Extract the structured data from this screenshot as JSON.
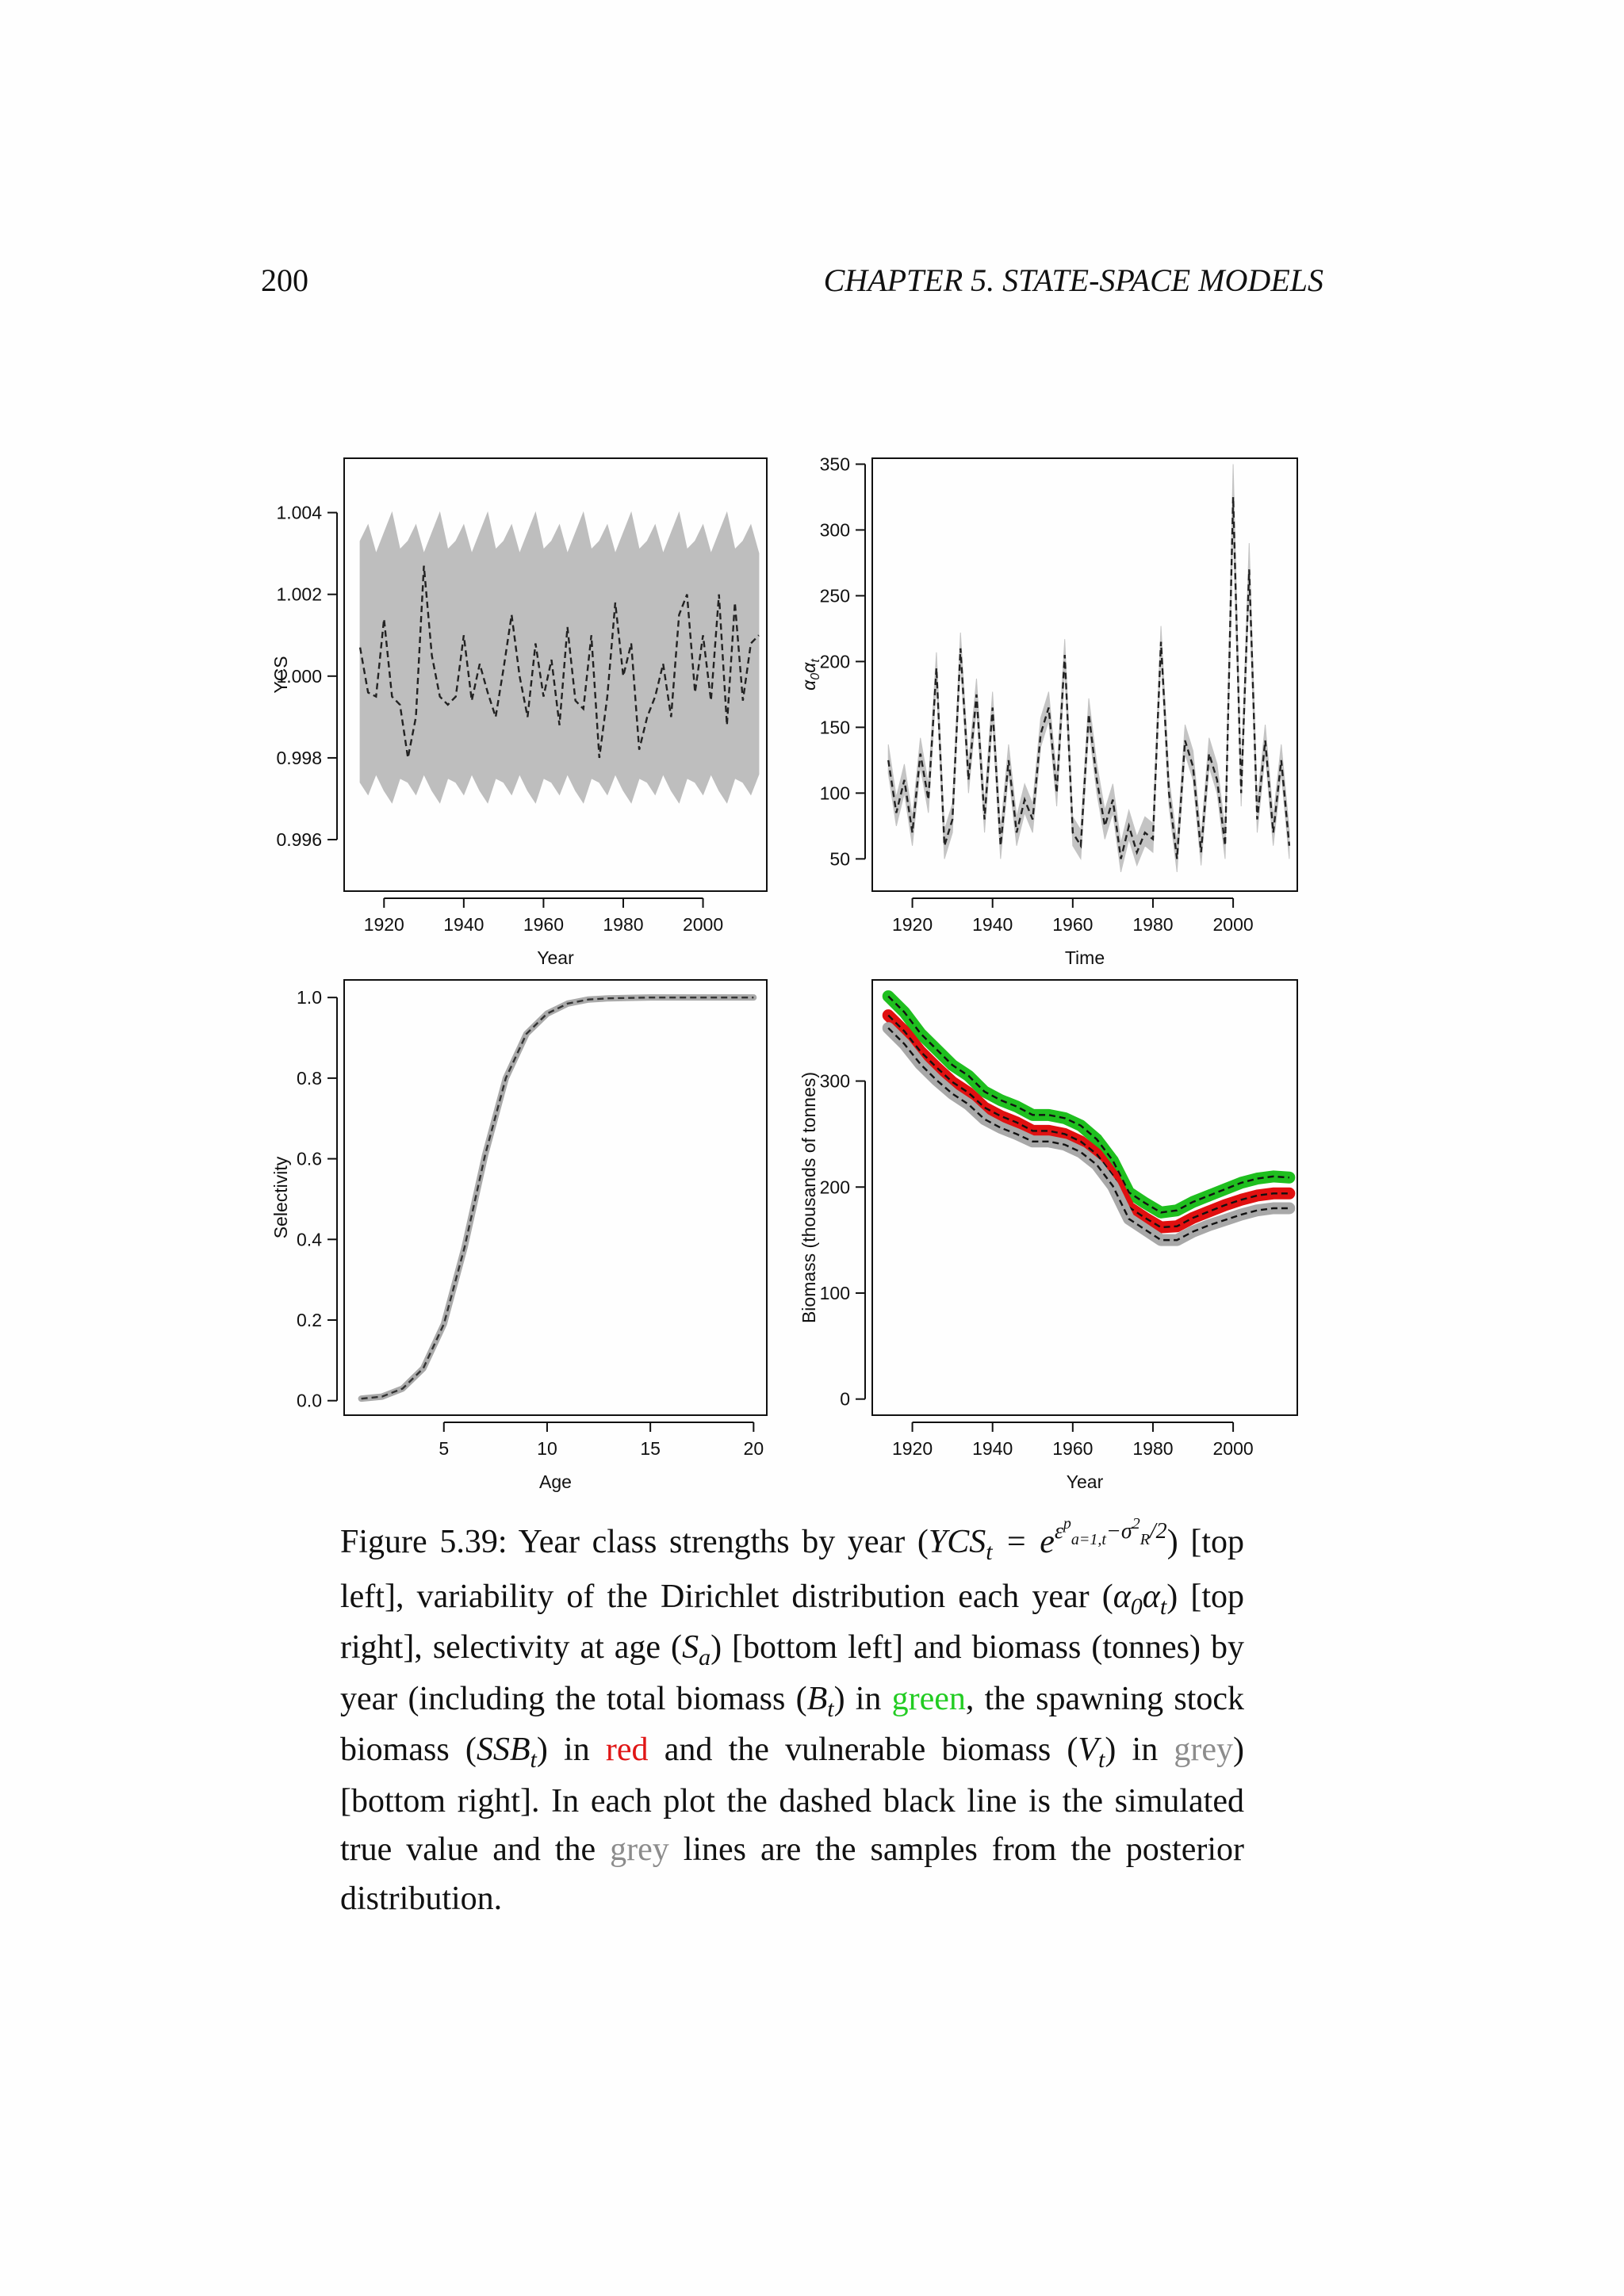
{
  "header": {
    "page_number": "200",
    "chapter": "CHAPTER 5.  STATE-SPACE MODELS"
  },
  "chart_data": [
    {
      "type": "line",
      "xlabel": "Year",
      "ylabel": "YCS",
      "xlim": [
        1910,
        2016
      ],
      "ylim": [
        0.99474,
        1.00533
      ],
      "xticks": [
        1920,
        1940,
        1960,
        1980,
        2000
      ],
      "yticks": [
        0.996,
        0.998,
        {
          "value": 1,
          "label": "1.000"
        },
        1.002,
        1.004
      ],
      "x": [
        1914,
        1916,
        1918,
        1920,
        1922,
        1924,
        1926,
        1928,
        1930,
        1932,
        1934,
        1936,
        1938,
        1940,
        1942,
        1944,
        1946,
        1948,
        1950,
        1952,
        1954,
        1956,
        1958,
        1960,
        1962,
        1964,
        1966,
        1968,
        1970,
        1972,
        1974,
        1976,
        1978,
        1980,
        1982,
        1984,
        1986,
        1988,
        1990,
        1992,
        1994,
        1996,
        1998,
        2000,
        2002,
        2004,
        2006,
        2008,
        2010,
        2012,
        2014
      ],
      "band": {
        "color": "#bebebe",
        "lower": [
          0.9974,
          0.9971,
          0.9976,
          0.9972,
          0.9969,
          0.9975,
          0.9974,
          0.9971,
          0.9976,
          0.9972,
          0.9969,
          0.9975,
          0.9974,
          0.9971,
          0.9976,
          0.9972,
          0.9969,
          0.9975,
          0.9974,
          0.9971,
          0.9976,
          0.9972,
          0.9969,
          0.9975,
          0.9974,
          0.9971,
          0.9976,
          0.9972,
          0.9969,
          0.9975,
          0.9974,
          0.9971,
          0.9976,
          0.9972,
          0.9969,
          0.9975,
          0.9974,
          0.9971,
          0.9976,
          0.9972,
          0.9969,
          0.9975,
          0.9974,
          0.9971,
          0.9976,
          0.9972,
          0.9969,
          0.9975,
          0.9974,
          0.9971,
          0.9976
        ],
        "upper": [
          1.0033,
          1.0037,
          1.003,
          1.0035,
          1.004,
          1.0031,
          1.0033,
          1.0037,
          1.003,
          1.0035,
          1.004,
          1.0031,
          1.0033,
          1.0037,
          1.003,
          1.0035,
          1.004,
          1.0031,
          1.0033,
          1.0037,
          1.003,
          1.0035,
          1.004,
          1.0031,
          1.0033,
          1.0037,
          1.003,
          1.0035,
          1.004,
          1.0031,
          1.0033,
          1.0037,
          1.003,
          1.0035,
          1.004,
          1.0031,
          1.0033,
          1.0037,
          1.003,
          1.0035,
          1.004,
          1.0031,
          1.0033,
          1.0037,
          1.003,
          1.0035,
          1.004,
          1.0031,
          1.0033,
          1.0037,
          1.003
        ]
      },
      "series": [
        {
          "color": "#222222",
          "line_style": "dashed",
          "values": [
            1.0007,
            0.9996,
            0.9995,
            1.0014,
            0.9995,
            0.9993,
            0.998,
            0.999,
            1.0027,
            1.0005,
            0.9995,
            0.9993,
            0.9995,
            1.001,
            0.9994,
            1.0003,
            0.9996,
            0.999,
            1.0002,
            1.0015,
            1.0,
            0.999,
            1.0008,
            0.9995,
            1.0004,
            0.9988,
            1.0012,
            0.9994,
            0.9992,
            1.001,
            0.998,
            0.9995,
            1.0018,
            1.0,
            1.0008,
            0.9982,
            0.999,
            0.9995,
            1.0003,
            0.999,
            1.0015,
            1.002,
            0.9996,
            1.001,
            0.9994,
            1.002,
            0.9988,
            1.0018,
            0.9994,
            1.0008,
            1.001
          ]
        }
      ]
    },
    {
      "type": "line",
      "xlabel": "Time",
      "ylabel": [
        {
          "text": "α",
          "style": "math"
        },
        {
          "text": "0",
          "style": "sub"
        },
        {
          "text": "α",
          "style": "math"
        },
        {
          "text": "t",
          "style": "sub"
        }
      ],
      "xlim": [
        1910,
        2016
      ],
      "ylim": [
        25.5,
        354.5
      ],
      "xticks": [
        1920,
        1940,
        1960,
        1980,
        2000
      ],
      "yticks": [
        50,
        100,
        150,
        200,
        250,
        300,
        350
      ],
      "x": [
        1914,
        1916,
        1918,
        1920,
        1922,
        1924,
        1926,
        1928,
        1930,
        1932,
        1934,
        1936,
        1938,
        1940,
        1942,
        1944,
        1946,
        1948,
        1950,
        1952,
        1954,
        1956,
        1958,
        1960,
        1962,
        1964,
        1966,
        1968,
        1970,
        1972,
        1974,
        1976,
        1978,
        1980,
        1982,
        1984,
        1986,
        1988,
        1990,
        1992,
        1994,
        1996,
        1998,
        2000,
        2002,
        2004,
        2006,
        2008,
        2010,
        2012,
        2014
      ],
      "band": {
        "color": "#c4c4c4",
        "lower": [
          115,
          75,
          100,
          60,
          120,
          85,
          185,
          50,
          70,
          200,
          100,
          165,
          70,
          155,
          50,
          115,
          60,
          85,
          70,
          135,
          155,
          90,
          195,
          60,
          50,
          150,
          100,
          65,
          85,
          40,
          65,
          45,
          60,
          55,
          205,
          90,
          40,
          130,
          110,
          45,
          120,
          100,
          50,
          305,
          90,
          255,
          70,
          130,
          60,
          115,
          50
        ],
        "upper": [
          137,
          97,
          122,
          82,
          142,
          107,
          207,
          72,
          92,
          222,
          122,
          187,
          92,
          177,
          72,
          137,
          82,
          107,
          92,
          157,
          177,
          112,
          217,
          82,
          72,
          172,
          122,
          87,
          107,
          62,
          87,
          67,
          82,
          77,
          227,
          112,
          62,
          152,
          132,
          67,
          142,
          122,
          72,
          350,
          112,
          290,
          92,
          152,
          82,
          137,
          72
        ]
      },
      "series": [
        {
          "color": "#222222",
          "line_style": "dashed",
          "values": [
            125,
            85,
            110,
            70,
            130,
            95,
            195,
            60,
            80,
            210,
            110,
            175,
            80,
            165,
            60,
            125,
            70,
            95,
            80,
            145,
            165,
            100,
            205,
            70,
            60,
            160,
            110,
            75,
            95,
            50,
            75,
            55,
            70,
            65,
            215,
            100,
            50,
            140,
            120,
            55,
            130,
            110,
            60,
            325,
            100,
            270,
            80,
            140,
            70,
            125,
            60
          ]
        }
      ]
    },
    {
      "type": "line",
      "xlabel": "Age",
      "ylabel": "Selectivity",
      "xlim": [
        0.17,
        20.64
      ],
      "ylim": [
        -0.036,
        1.0436
      ],
      "xticks": [
        5,
        10,
        15,
        20
      ],
      "yticks": [
        {
          "value": 0,
          "label": "0.0"
        },
        0.2,
        0.4,
        0.6,
        0.8,
        {
          "value": 1,
          "label": "1.0"
        }
      ],
      "x": [
        1,
        2,
        3,
        4,
        5,
        6,
        7,
        8,
        9,
        10,
        11,
        12,
        13,
        14,
        15,
        16,
        17,
        18,
        19,
        20
      ],
      "series": [
        {
          "color": "#333333",
          "halo_color": "#aaaaaa",
          "line_style": "dashed",
          "values": [
            0.005,
            0.01,
            0.03,
            0.08,
            0.19,
            0.38,
            0.61,
            0.8,
            0.91,
            0.96,
            0.985,
            0.995,
            0.998,
            0.999,
            1,
            1,
            1,
            1,
            1,
            1
          ]
        }
      ]
    },
    {
      "type": "line",
      "xlabel": "Year",
      "ylabel": "Biomass (thousands of tonnes)",
      "xlim": [
        1910,
        2016
      ],
      "ylim": [
        -15.2,
        395.4
      ],
      "xticks": [
        1920,
        1940,
        1960,
        1980,
        2000
      ],
      "yticks": [
        0,
        100,
        200,
        300
      ],
      "x": [
        1914,
        1918,
        1922,
        1926,
        1930,
        1934,
        1938,
        1942,
        1946,
        1950,
        1954,
        1958,
        1962,
        1966,
        1970,
        1974,
        1978,
        1982,
        1986,
        1990,
        1994,
        1998,
        2002,
        2006,
        2010,
        2014
      ],
      "series": [
        {
          "color": "#111111",
          "halo_color": "#1fbf1f",
          "line_style": "dashed",
          "values": [
            380,
            365,
            345,
            330,
            315,
            305,
            290,
            282,
            276,
            268,
            268,
            265,
            258,
            245,
            225,
            195,
            185,
            176,
            178,
            186,
            192,
            198,
            204,
            208,
            210,
            209
          ]
        },
        {
          "color": "#111111",
          "halo_color": "#e01010",
          "line_style": "dashed",
          "values": [
            362,
            347,
            328,
            313,
            299,
            289,
            275,
            267,
            261,
            253,
            253,
            250,
            243,
            231,
            211,
            181,
            171,
            162,
            163,
            171,
            177,
            183,
            188,
            192,
            194,
            194
          ]
        },
        {
          "color": "#111111",
          "halo_color": "#a8a8a8",
          "line_style": "dashed",
          "values": [
            350,
            335,
            316,
            301,
            288,
            278,
            264,
            256,
            250,
            243,
            243,
            240,
            233,
            221,
            201,
            170,
            160,
            150,
            150,
            158,
            164,
            169,
            174,
            178,
            180,
            180
          ]
        }
      ]
    }
  ],
  "caption": [
    {
      "text": "Figure 5.39: Year class strengths by year (",
      "style": "text"
    },
    {
      "text": "YCS",
      "style": "math"
    },
    {
      "text": "t",
      "style": "sub"
    },
    {
      "text": " = e",
      "style": "math"
    },
    {
      "text": "ε",
      "style": "sup"
    },
    {
      "text": "p",
      "style": "sup2"
    },
    {
      "text": "a=1,t",
      "style": "supsub"
    },
    {
      "text": "−σ",
      "style": "sup"
    },
    {
      "text": "2",
      "style": "sup2"
    },
    {
      "text": "R",
      "style": "supsub"
    },
    {
      "text": "/2",
      "style": "sup"
    },
    {
      "text": ") [top left], variability of the Dirichlet distribution each year (",
      "style": "text"
    },
    {
      "text": "α",
      "style": "math"
    },
    {
      "text": "0",
      "style": "sub"
    },
    {
      "text": "α",
      "style": "math"
    },
    {
      "text": "t",
      "style": "sub"
    },
    {
      "text": ") [top right], selectivity at age (",
      "style": "text"
    },
    {
      "text": "S",
      "style": "math"
    },
    {
      "text": "a",
      "style": "sub"
    },
    {
      "text": ") [bottom left] and biomass (tonnes) by year (including the total biomass (",
      "style": "text"
    },
    {
      "text": "B",
      "style": "math"
    },
    {
      "text": "t",
      "style": "sub"
    },
    {
      "text": ") in ",
      "style": "text"
    },
    {
      "text": "green",
      "style": "green"
    },
    {
      "text": ", the spawning stock biomass (",
      "style": "text"
    },
    {
      "text": "SSB",
      "style": "math"
    },
    {
      "text": "t",
      "style": "sub"
    },
    {
      "text": ") in ",
      "style": "text"
    },
    {
      "text": "red",
      "style": "red"
    },
    {
      "text": " and the vulnerable biomass (",
      "style": "text"
    },
    {
      "text": "V",
      "style": "math"
    },
    {
      "text": "t",
      "style": "sub"
    },
    {
      "text": ") in ",
      "style": "text"
    },
    {
      "text": "grey",
      "style": "grey"
    },
    {
      "text": ") [bottom right].  In each plot the dashed black line is the simulated true value and the ",
      "style": "text"
    },
    {
      "text": "grey",
      "style": "grey"
    },
    {
      "text": " lines are the samples from the posterior distribution.",
      "style": "text"
    }
  ]
}
